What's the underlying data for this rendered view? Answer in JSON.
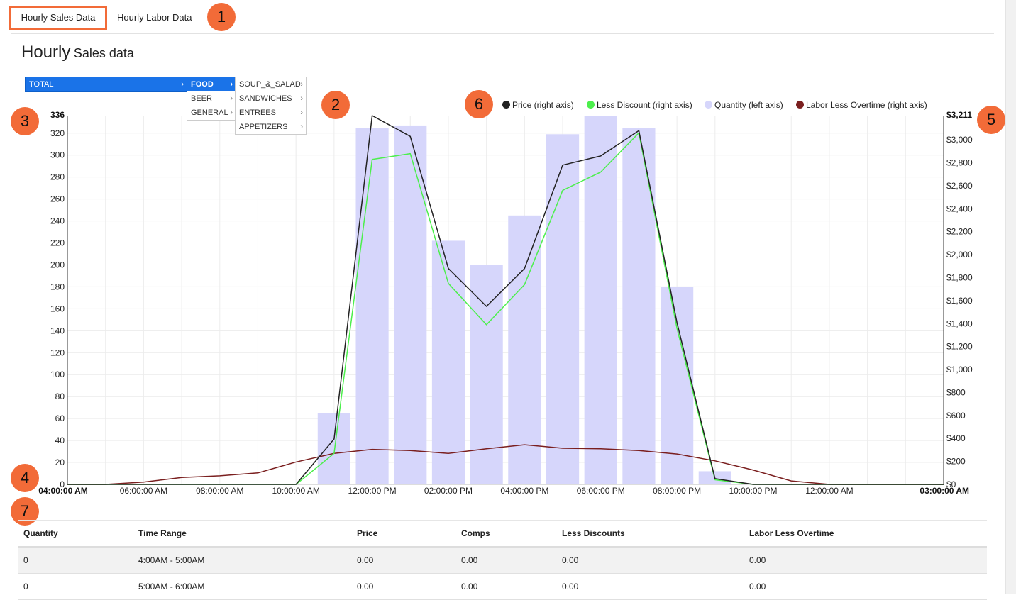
{
  "tabs": [
    {
      "label": "Hourly Sales Data",
      "active": true
    },
    {
      "label": "Hourly Labor Data",
      "active": false
    }
  ],
  "page_title": {
    "big": "Hourly",
    "small": "Sales data"
  },
  "badges": [
    "1",
    "2",
    "3",
    "4",
    "5",
    "6",
    "7"
  ],
  "menu": {
    "level1": [
      {
        "label": "TOTAL",
        "arrow": "›"
      }
    ],
    "level2": [
      {
        "label": "FOOD",
        "arrow": "›",
        "selected": true
      },
      {
        "label": "BEER",
        "arrow": "›"
      },
      {
        "label": "GENERAL",
        "arrow": "›"
      }
    ],
    "level3": [
      {
        "label": "SOUP_&_SALAD",
        "arrow": "›"
      },
      {
        "label": "SANDWICHES",
        "arrow": "›"
      },
      {
        "label": "ENTREES",
        "arrow": "›"
      },
      {
        "label": "APPETIZERS",
        "arrow": "›"
      }
    ]
  },
  "colors": {
    "accent": "#f26b38",
    "menu_blue": "#1a73e8",
    "price": "#222222",
    "discount": "#4cef4c",
    "quantity": "#d6d6fb",
    "labor": "#7a1f1f"
  },
  "chart_data": {
    "type": "bar",
    "title": "",
    "legend": [
      {
        "label": "Price (right axis)",
        "color": "#222222"
      },
      {
        "label": "Less Discount (right axis)",
        "color": "#4cef4c"
      },
      {
        "label": "Quantity (left axis)",
        "color": "#d6d6fb"
      },
      {
        "label": "Labor Less Overtime (right axis)",
        "color": "#7a1f1f"
      }
    ],
    "legend_position": "top-right",
    "left_axis": {
      "min": 0,
      "max": 336,
      "ticks": [
        0,
        20,
        40,
        60,
        80,
        100,
        120,
        140,
        160,
        180,
        200,
        220,
        240,
        260,
        280,
        300,
        320
      ],
      "max_label": "336"
    },
    "right_axis": {
      "min": 0,
      "max": 3211,
      "ticks": [
        0,
        200,
        400,
        600,
        800,
        1000,
        1200,
        1400,
        1600,
        1800,
        2000,
        2200,
        2400,
        2600,
        2800,
        3000
      ],
      "tick_labels": [
        "$0",
        "$200",
        "$400",
        "$600",
        "$800",
        "$1,000",
        "$1,200",
        "$1,400",
        "$1,600",
        "$1,800",
        "$2,000",
        "$2,200",
        "$2,400",
        "$2,600",
        "$2,800",
        "$3,000"
      ],
      "max_label": "$3,211"
    },
    "x_axis": {
      "start_label": "04:00:00 AM",
      "end_label": "03:00:00 AM",
      "labels": [
        {
          "hour": 2,
          "label": "06:00:00 AM"
        },
        {
          "hour": 4,
          "label": "08:00:00 AM"
        },
        {
          "hour": 6,
          "label": "10:00:00 AM"
        },
        {
          "hour": 8,
          "label": "12:00:00 PM"
        },
        {
          "hour": 10,
          "label": "02:00:00 PM"
        },
        {
          "hour": 12,
          "label": "04:00:00 PM"
        },
        {
          "hour": 14,
          "label": "06:00:00 PM"
        },
        {
          "hour": 16,
          "label": "08:00:00 PM"
        },
        {
          "hour": 18,
          "label": "10:00:00 PM"
        },
        {
          "hour": 20,
          "label": "12:00:00 AM"
        }
      ],
      "hours_span": 23
    },
    "quantity": [
      {
        "hour": 7,
        "value": 65
      },
      {
        "hour": 8,
        "value": 325
      },
      {
        "hour": 9,
        "value": 327
      },
      {
        "hour": 10,
        "value": 222
      },
      {
        "hour": 11,
        "value": 200
      },
      {
        "hour": 12,
        "value": 245
      },
      {
        "hour": 13,
        "value": 319
      },
      {
        "hour": 14,
        "value": 336
      },
      {
        "hour": 15,
        "value": 325
      },
      {
        "hour": 16,
        "value": 180
      },
      {
        "hour": 17,
        "value": 12
      }
    ],
    "price": [
      0,
      0,
      0,
      0,
      0,
      0,
      0,
      395,
      3211,
      3030,
      1880,
      1550,
      1880,
      2780,
      2860,
      3080,
      1410,
      50,
      0,
      0,
      0,
      0,
      0,
      0
    ],
    "less_discount": [
      0,
      0,
      0,
      0,
      0,
      0,
      0,
      270,
      2830,
      2880,
      1750,
      1390,
      1740,
      2560,
      2720,
      3060,
      1360,
      40,
      0,
      0,
      0,
      0,
      0,
      0
    ],
    "labor_less_overtime": [
      0,
      0,
      20,
      60,
      75,
      100,
      195,
      270,
      305,
      295,
      270,
      310,
      345,
      315,
      310,
      295,
      265,
      205,
      125,
      30,
      0,
      0,
      0,
      0
    ]
  },
  "table": {
    "columns": [
      "Quantity",
      "Time Range",
      "Price",
      "Comps",
      "Less Discounts",
      "Labor Less Overtime"
    ],
    "rows": [
      [
        "0",
        "4:00AM - 5:00AM",
        "0.00",
        "0.00",
        "0.00",
        "0.00"
      ],
      [
        "0",
        "5:00AM - 6:00AM",
        "0.00",
        "0.00",
        "0.00",
        "0.00"
      ]
    ]
  }
}
